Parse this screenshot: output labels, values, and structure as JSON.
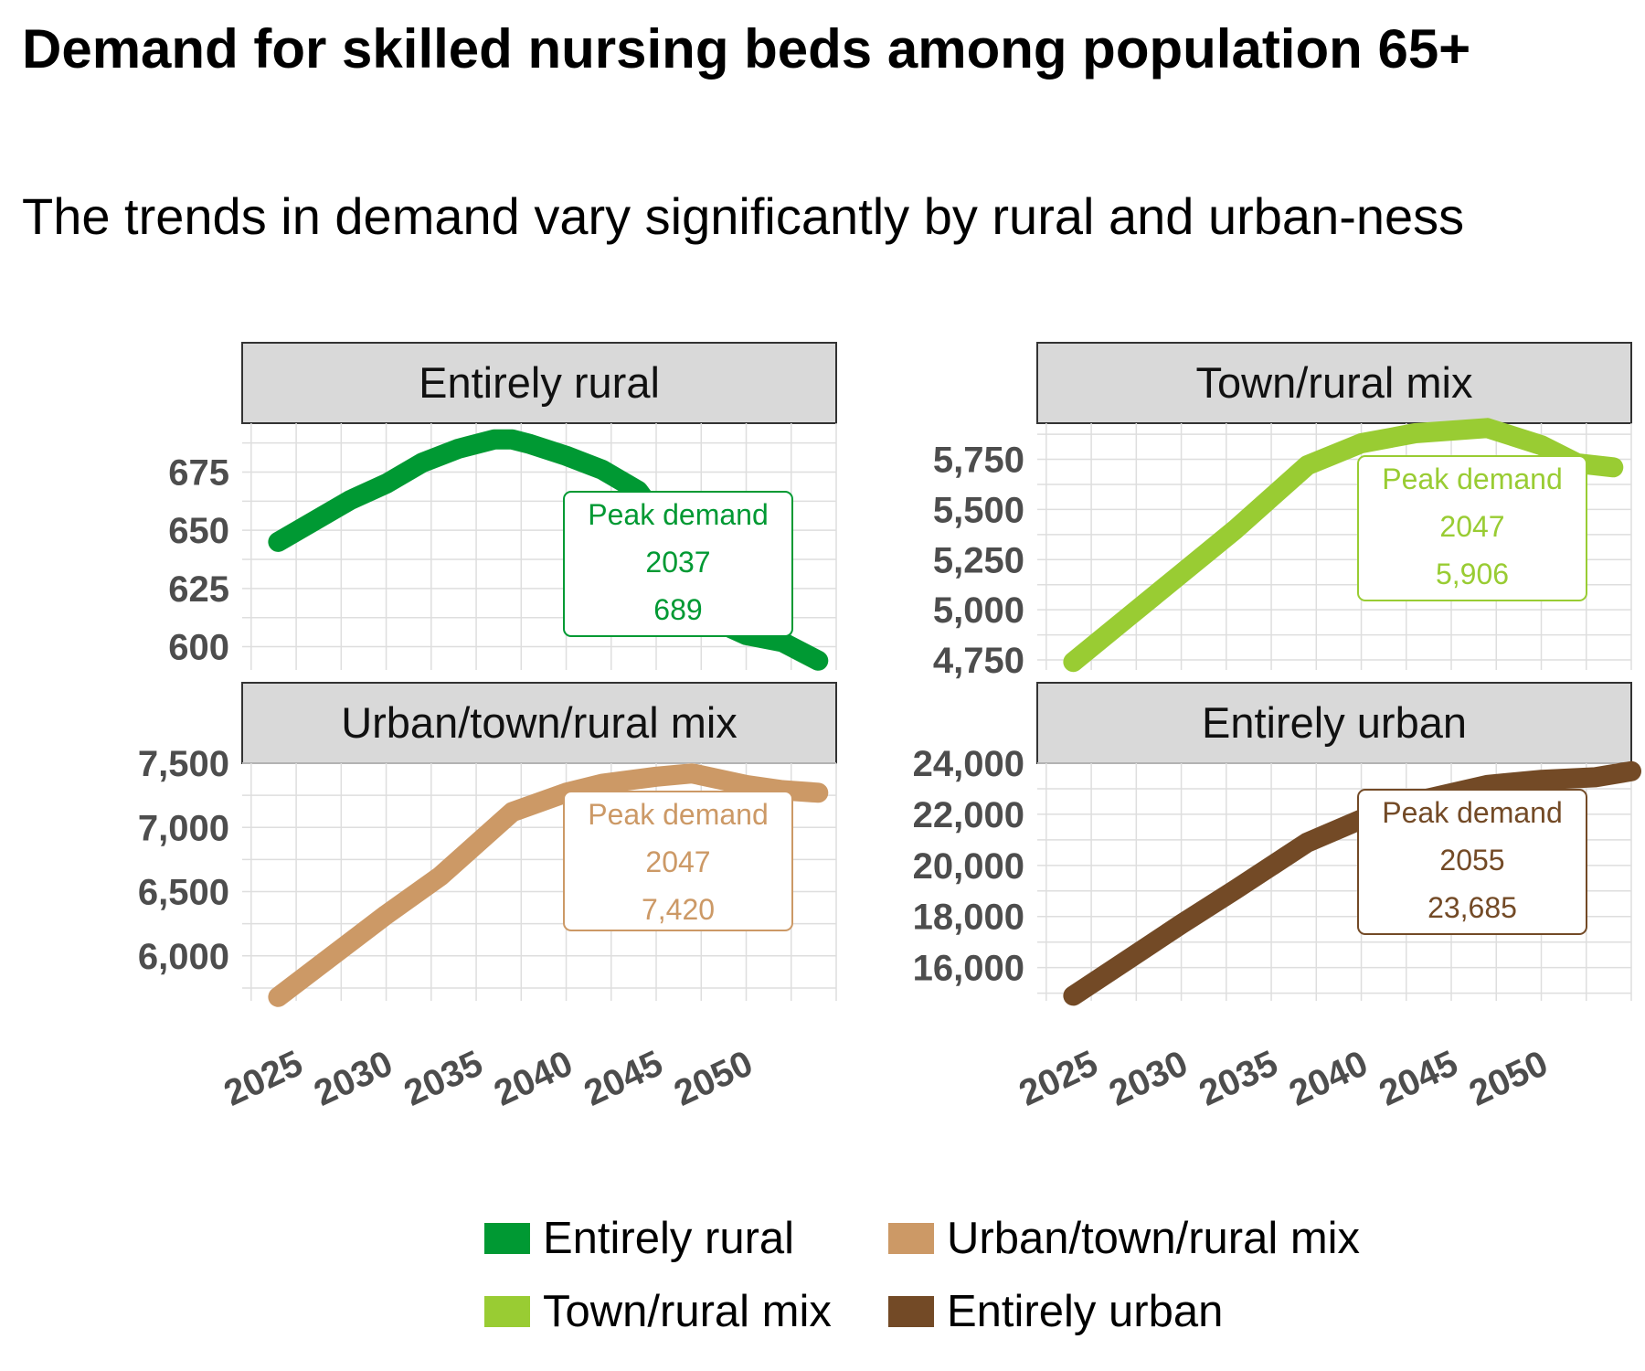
{
  "title": "Demand for skilled nursing beds among population 65+",
  "subtitle": "The trends in demand vary significantly by rural and urban-ness",
  "colors": {
    "entirely_rural": "#009933",
    "town_rural_mix": "#99cc33",
    "urban_town_rural_mix": "#cc9966",
    "entirely_urban": "#734a26",
    "strip_bg": "#d9d9d9",
    "grid": "#dedede",
    "tick_text": "#4d4d4d"
  },
  "chart_data": [
    {
      "type": "line",
      "panel": "Entirely rural",
      "x_ticks": [
        "2025",
        "2030",
        "2035",
        "2040",
        "2045",
        "2050"
      ],
      "y_ticks": [
        "600",
        "625",
        "650",
        "675"
      ],
      "ylim": [
        590,
        696
      ],
      "xlim": [
        2022,
        2055
      ],
      "series": [
        {
          "name": "Entirely rural",
          "color": "#009933",
          "x": [
            2024,
            2026,
            2028,
            2030,
            2032,
            2034,
            2036,
            2037,
            2038,
            2040,
            2042,
            2044,
            2046,
            2048,
            2050,
            2052,
            2054
          ],
          "y": [
            645,
            654,
            663,
            670,
            679,
            685,
            689,
            689,
            687,
            682,
            676,
            667,
            646,
            612,
            605,
            602,
            594
          ]
        }
      ],
      "annotation": {
        "title": "Peak demand",
        "year": "2037",
        "value": "689"
      }
    },
    {
      "type": "line",
      "panel": "Town/rural mix",
      "x_ticks": [
        "2025",
        "2030",
        "2035",
        "2040",
        "2045",
        "2050"
      ],
      "y_ticks": [
        "4,750",
        "5,000",
        "5,250",
        "5,500",
        "5,750"
      ],
      "ylim": [
        4700,
        5930
      ],
      "xlim": [
        2022,
        2055
      ],
      "series": [
        {
          "name": "Town/rural mix",
          "color": "#99cc33",
          "x": [
            2024,
            2027,
            2030,
            2033,
            2037,
            2040,
            2043,
            2047,
            2050,
            2052,
            2054
          ],
          "y": [
            4740,
            4960,
            5180,
            5400,
            5720,
            5830,
            5880,
            5906,
            5820,
            5730,
            5710
          ]
        }
      ],
      "annotation": {
        "title": "Peak demand",
        "year": "2047",
        "value": "5,906"
      }
    },
    {
      "type": "line",
      "panel": "Urban/town/rural mix",
      "x_ticks": [
        "2025",
        "2030",
        "2035",
        "2040",
        "2045",
        "2050"
      ],
      "y_ticks": [
        "6,000",
        "6,500",
        "7,000",
        "7,500"
      ],
      "ylim": [
        5650,
        7500
      ],
      "xlim": [
        2022,
        2055
      ],
      "series": [
        {
          "name": "Urban/town/rural mix",
          "color": "#cc9966",
          "x": [
            2024,
            2027,
            2030,
            2033,
            2037,
            2040,
            2042,
            2045,
            2047,
            2050,
            2052,
            2054
          ],
          "y": [
            5680,
            6000,
            6320,
            6620,
            7120,
            7270,
            7340,
            7395,
            7420,
            7330,
            7290,
            7270
          ]
        }
      ],
      "annotation": {
        "title": "Peak demand",
        "year": "2047",
        "value": "7,420"
      }
    },
    {
      "type": "line",
      "panel": "Entirely urban",
      "x_ticks": [
        "2025",
        "2030",
        "2035",
        "2040",
        "2045",
        "2050"
      ],
      "y_ticks": [
        "16,000",
        "18,000",
        "20,000",
        "22,000",
        "24,000"
      ],
      "ylim": [
        14700,
        24000
      ],
      "xlim": [
        2022,
        2055
      ],
      "series": [
        {
          "name": "Entirely urban",
          "color": "#734a26",
          "x": [
            2024,
            2027,
            2030,
            2033,
            2037,
            2040,
            2043,
            2047,
            2050,
            2053,
            2055
          ],
          "y": [
            14900,
            16300,
            17700,
            19050,
            20900,
            21800,
            22500,
            23150,
            23350,
            23450,
            23685
          ]
        }
      ],
      "annotation": {
        "title": "Peak demand",
        "year": "2055",
        "value": "23,685"
      }
    }
  ],
  "legend": {
    "items": [
      {
        "label": "Entirely rural",
        "color": "#009933"
      },
      {
        "label": "Urban/town/rural mix",
        "color": "#cc9966"
      },
      {
        "label": "Town/rural mix",
        "color": "#99cc33"
      },
      {
        "label": "Entirely urban",
        "color": "#734a26"
      }
    ]
  }
}
